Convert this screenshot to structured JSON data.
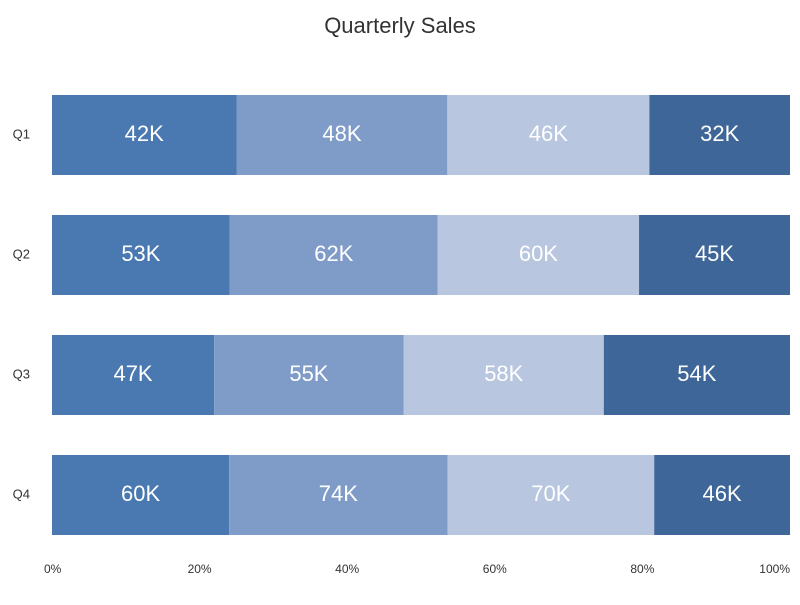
{
  "chart_data": {
    "type": "bar",
    "orientation": "horizontal",
    "stack": "percent",
    "title": "Quarterly Sales",
    "categories": [
      "Q1",
      "Q2",
      "Q3",
      "Q4"
    ],
    "series": [
      {
        "color": "#4a78b0",
        "values": [
          42000,
          53000,
          47000,
          60000
        ],
        "value_labels": [
          "42K",
          "53K",
          "47K",
          "60K"
        ]
      },
      {
        "color": "#7f9cc9",
        "values": [
          48000,
          62000,
          55000,
          74000
        ],
        "value_labels": [
          "48K",
          "62K",
          "55K",
          "74K"
        ]
      },
      {
        "color": "#b8c6df",
        "values": [
          46000,
          60000,
          58000,
          70000
        ],
        "value_labels": [
          "46K",
          "60K",
          "58K",
          "70K"
        ]
      },
      {
        "color": "#3e6698",
        "values": [
          32000,
          45000,
          54000,
          46000
        ],
        "value_labels": [
          "32K",
          "45K",
          "54K",
          "46K"
        ]
      }
    ],
    "xlim": [
      0,
      100
    ],
    "xticks": [
      {
        "value": 0,
        "label": "0%"
      },
      {
        "value": 20,
        "label": "20%"
      },
      {
        "value": 40,
        "label": "40%"
      },
      {
        "value": 60,
        "label": "60%"
      },
      {
        "value": 80,
        "label": "80%"
      },
      {
        "value": 100,
        "label": "100%"
      }
    ],
    "grid": false
  }
}
